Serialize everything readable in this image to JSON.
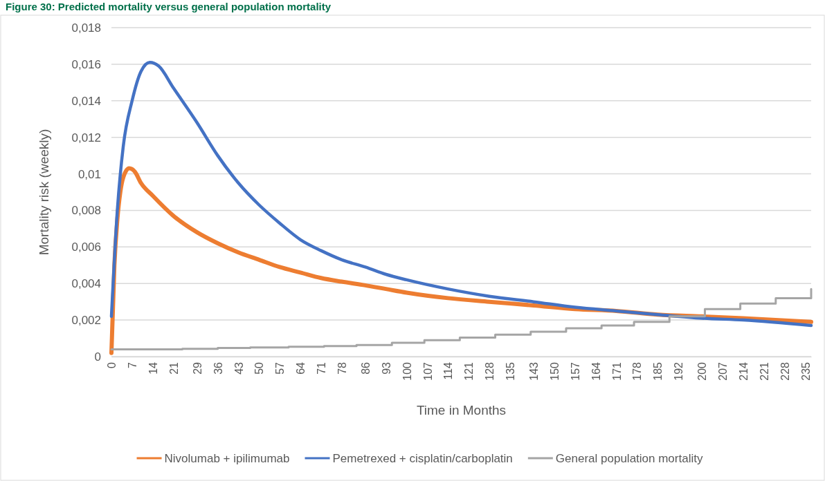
{
  "chart_data": {
    "type": "line",
    "title": "Figure 30: Predicted mortality versus general population mortality",
    "xlabel": "Time in Months",
    "ylabel": "Mortality risk (weekly)",
    "xlim": [
      0,
      237
    ],
    "xticks": [
      0,
      7,
      14,
      21,
      29,
      36,
      43,
      50,
      57,
      64,
      71,
      78,
      86,
      93,
      100,
      107,
      114,
      121,
      128,
      135,
      143,
      150,
      157,
      164,
      171,
      178,
      185,
      192,
      200,
      207,
      214,
      221,
      228,
      235
    ],
    "ylim": [
      0,
      0.018
    ],
    "yticks": [
      0,
      {
        "value": 0.002,
        "label": "0,002"
      },
      {
        "value": 0.004,
        "label": "0,004"
      },
      {
        "value": 0.006,
        "label": "0,006"
      },
      {
        "value": 0.008,
        "label": "0,008"
      },
      {
        "value": 0.01,
        "label": "0,01"
      },
      {
        "value": 0.012,
        "label": "0,012"
      },
      {
        "value": 0.014,
        "label": "0,014"
      },
      {
        "value": 0.016,
        "label": "0,016"
      },
      {
        "value": 0.018,
        "label": "0,018"
      }
    ],
    "grid": "y",
    "legend": "bottom",
    "marker": "none",
    "line_style": "solid",
    "series": [
      {
        "name": "Nivolumab + ipilimumab",
        "color": "#ed7d31",
        "x": [
          0,
          1,
          2,
          3,
          4,
          6,
          8,
          10,
          14,
          21,
          29,
          36,
          43,
          50,
          57,
          64,
          71,
          78,
          86,
          93,
          100,
          114,
          128,
          143,
          157,
          171,
          185,
          200,
          214,
          237
        ],
        "values": [
          0.0002,
          0.005,
          0.0075,
          0.009,
          0.0098,
          0.0103,
          0.0101,
          0.0095,
          0.0088,
          0.0077,
          0.0068,
          0.0062,
          0.0057,
          0.0053,
          0.0049,
          0.0046,
          0.0043,
          0.0041,
          0.0039,
          0.0037,
          0.0035,
          0.0032,
          0.003,
          0.0028,
          0.0026,
          0.0025,
          0.0023,
          0.0022,
          0.0021,
          0.0019
        ]
      },
      {
        "name": "Pemetrexed + cisplatin/carboplatin",
        "color": "#4472c4",
        "x": [
          0,
          2,
          4,
          7,
          10,
          13,
          16,
          21,
          29,
          36,
          43,
          50,
          57,
          64,
          71,
          78,
          86,
          93,
          100,
          114,
          128,
          143,
          157,
          171,
          185,
          200,
          214,
          237
        ],
        "values": [
          0.0022,
          0.008,
          0.0115,
          0.014,
          0.0156,
          0.0161,
          0.0159,
          0.0147,
          0.0128,
          0.011,
          0.0095,
          0.0083,
          0.0073,
          0.0064,
          0.0058,
          0.0053,
          0.0049,
          0.0045,
          0.0042,
          0.0037,
          0.0033,
          0.003,
          0.0027,
          0.0025,
          0.0023,
          0.0021,
          0.002,
          0.0017
        ]
      },
      {
        "name": "General population mortality",
        "color": "#a5a5a5",
        "type": "step",
        "x": [
          0,
          24,
          36,
          47,
          60,
          72,
          83,
          95,
          106,
          118,
          130,
          142,
          154,
          166,
          177,
          189,
          201,
          213,
          225,
          237
        ],
        "values": [
          0.0004,
          0.00043,
          0.00047,
          0.0005,
          0.00054,
          0.00058,
          0.00063,
          0.00076,
          0.0009,
          0.00104,
          0.0012,
          0.00136,
          0.00155,
          0.0017,
          0.0019,
          0.0022,
          0.0026,
          0.0029,
          0.0032,
          0.0037
        ]
      }
    ]
  }
}
